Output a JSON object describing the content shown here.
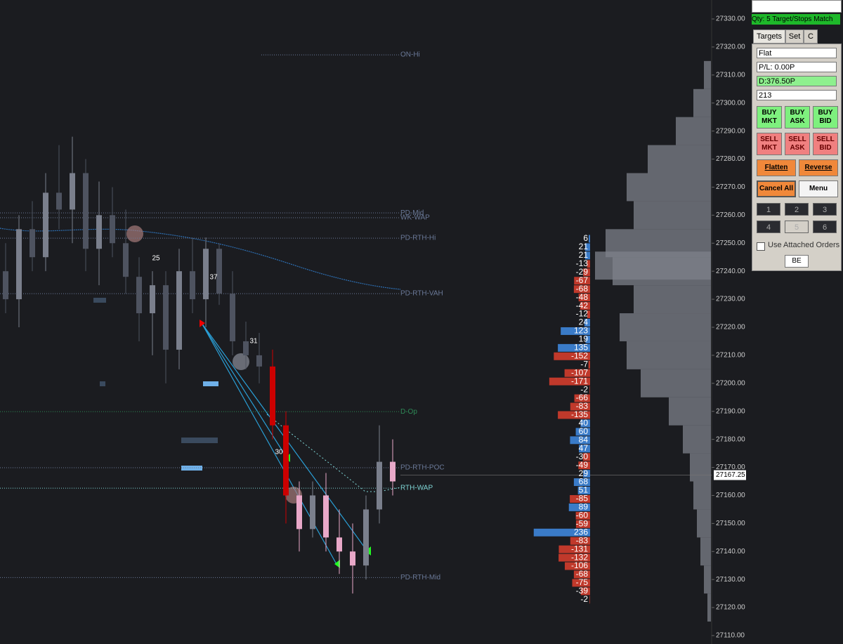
{
  "chart_data": {
    "type": "candlestick",
    "yticks": [
      {
        "value": 27330,
        "label": "27330.00"
      },
      {
        "value": 27320,
        "label": "27320.00"
      },
      {
        "value": 27310,
        "label": "27310.00"
      },
      {
        "value": 27300,
        "label": "27300.00"
      },
      {
        "value": 27290,
        "label": "27290.00"
      },
      {
        "value": 27280,
        "label": "27280.00"
      },
      {
        "value": 27270,
        "label": "27270.00"
      },
      {
        "value": 27260,
        "label": "27260.00"
      },
      {
        "value": 27250,
        "label": "27250.00"
      },
      {
        "value": 27240,
        "label": "27240.00"
      },
      {
        "value": 27230,
        "label": "27230.00"
      },
      {
        "value": 27220,
        "label": "27220.00"
      },
      {
        "value": 27210,
        "label": "27210.00"
      },
      {
        "value": 27200,
        "label": "27200.00"
      },
      {
        "value": 27190,
        "label": "27190.00"
      },
      {
        "value": 27180,
        "label": "27180.00"
      },
      {
        "value": 27170,
        "label": "27170.00"
      },
      {
        "value": 27160,
        "label": "27160.00"
      },
      {
        "value": 27150,
        "label": "27150.00"
      },
      {
        "value": 27140,
        "label": "27140.00"
      },
      {
        "value": 27130,
        "label": "27130.00"
      },
      {
        "value": 27120,
        "label": "27120.00"
      },
      {
        "value": 27110,
        "label": "27110.00"
      }
    ],
    "ylim": [
      27110,
      27330
    ],
    "current_price": 27167.25,
    "open": [
      27240,
      27230,
      27255,
      27245,
      27268,
      27262,
      27275,
      27248,
      27260,
      27250,
      27238,
      27225,
      27235,
      27212,
      27240,
      27230,
      27248,
      27232,
      27215,
      27210,
      27206,
      27185,
      27160,
      27148,
      27160,
      27145,
      27140,
      27135,
      27155,
      27172
    ],
    "high": [
      27250,
      27260,
      27265,
      27275,
      27285,
      27288,
      27280,
      27272,
      27270,
      27262,
      27245,
      27240,
      27240,
      27248,
      27252,
      27252,
      27250,
      27240,
      27222,
      27218,
      27212,
      27190,
      27165,
      27165,
      27168,
      27155,
      27150,
      27160,
      27185,
      27180
    ],
    "low": [
      27225,
      27220,
      27240,
      27240,
      27255,
      27250,
      27240,
      27235,
      27245,
      27232,
      27215,
      27210,
      27200,
      27205,
      27225,
      27220,
      27228,
      27210,
      27205,
      27200,
      27180,
      27150,
      27140,
      27145,
      27140,
      27132,
      27125,
      27130,
      27150,
      27160
    ],
    "close": [
      27230,
      27255,
      27245,
      27268,
      27262,
      27275,
      27248,
      27260,
      27250,
      27238,
      27225,
      27235,
      27212,
      27240,
      27230,
      27248,
      27232,
      27215,
      27210,
      27206,
      27185,
      27160,
      27148,
      27160,
      27145,
      27140,
      27135,
      27155,
      27172,
      27165
    ],
    "levels": [
      {
        "label": "ON-Hi",
        "price": 27317.2,
        "color": "#6b7a99"
      },
      {
        "label": "PD-Mid",
        "price": 27260.8,
        "color": "#6b7a99"
      },
      {
        "label": "WK-WAP",
        "price": 27259.1,
        "color": "#6b7a99"
      },
      {
        "label": "PD-RTH-Hi",
        "price": 27251.8,
        "color": "#6b7a99"
      },
      {
        "label": "PD-RTH-VAH",
        "price": 27232,
        "color": "#6b7a99"
      },
      {
        "label": "D-Op",
        "price": 27189.9,
        "color": "#2e8b57"
      },
      {
        "label": "PD-RTH-POC",
        "price": 27169.9,
        "color": "#6b7a99"
      },
      {
        "label": "RTH-WAP",
        "price": 27162.6,
        "color": "#7fd6d6"
      },
      {
        "label": "PD-RTH-Mid",
        "price": 27130.7,
        "color": "#6b7a99"
      }
    ],
    "annotations": [
      "25",
      "37",
      "31",
      "30"
    ],
    "delta": [
      6,
      21,
      21,
      -13,
      -29,
      -67,
      -68,
      -48,
      -42,
      -12,
      24,
      123,
      19,
      135,
      -152,
      -7,
      -107,
      -171,
      -2,
      -66,
      -83,
      -135,
      40,
      60,
      84,
      47,
      -30,
      -49,
      29,
      68,
      51,
      -85,
      89,
      -60,
      -59,
      236,
      -83,
      -131,
      -132,
      -106,
      -68,
      -75,
      -39,
      -2
    ],
    "delta_colors": {
      "positive": "#3a7bc8",
      "negative": "#c0392b"
    },
    "volume_profile": {
      "prices": [
        27310,
        27300,
        27290,
        27280,
        27270,
        27260,
        27250,
        27242,
        27240,
        27230,
        27220,
        27210,
        27200,
        27190,
        27180,
        27170,
        27160,
        27150,
        27140,
        27130,
        27120
      ],
      "values": [
        10,
        25,
        50,
        90,
        120,
        110,
        150,
        165,
        140,
        110,
        130,
        120,
        100,
        60,
        40,
        30,
        25,
        20,
        15,
        10,
        5
      ]
    }
  },
  "panel": {
    "qty_status": "Qty: 5 Target/Stops Match",
    "tabs": [
      "Targets",
      "Set",
      "C"
    ],
    "position": "Flat",
    "pnl": "P/L: 0.00P",
    "drawdown": "D:376.50P",
    "account": "213",
    "buy": [
      "BUY MKT",
      "BUY ASK",
      "BUY BID"
    ],
    "sell": [
      "SELL MKT",
      "SELL ASK",
      "SELL BID"
    ],
    "flatten": "Flatten",
    "reverse": "Reverse",
    "cancel_all": "Cancel All",
    "menu": "Menu",
    "numbers": [
      "1",
      "2",
      "3",
      "4",
      "5",
      "6"
    ],
    "attached": "Use Attached Orders",
    "be": "BE"
  }
}
